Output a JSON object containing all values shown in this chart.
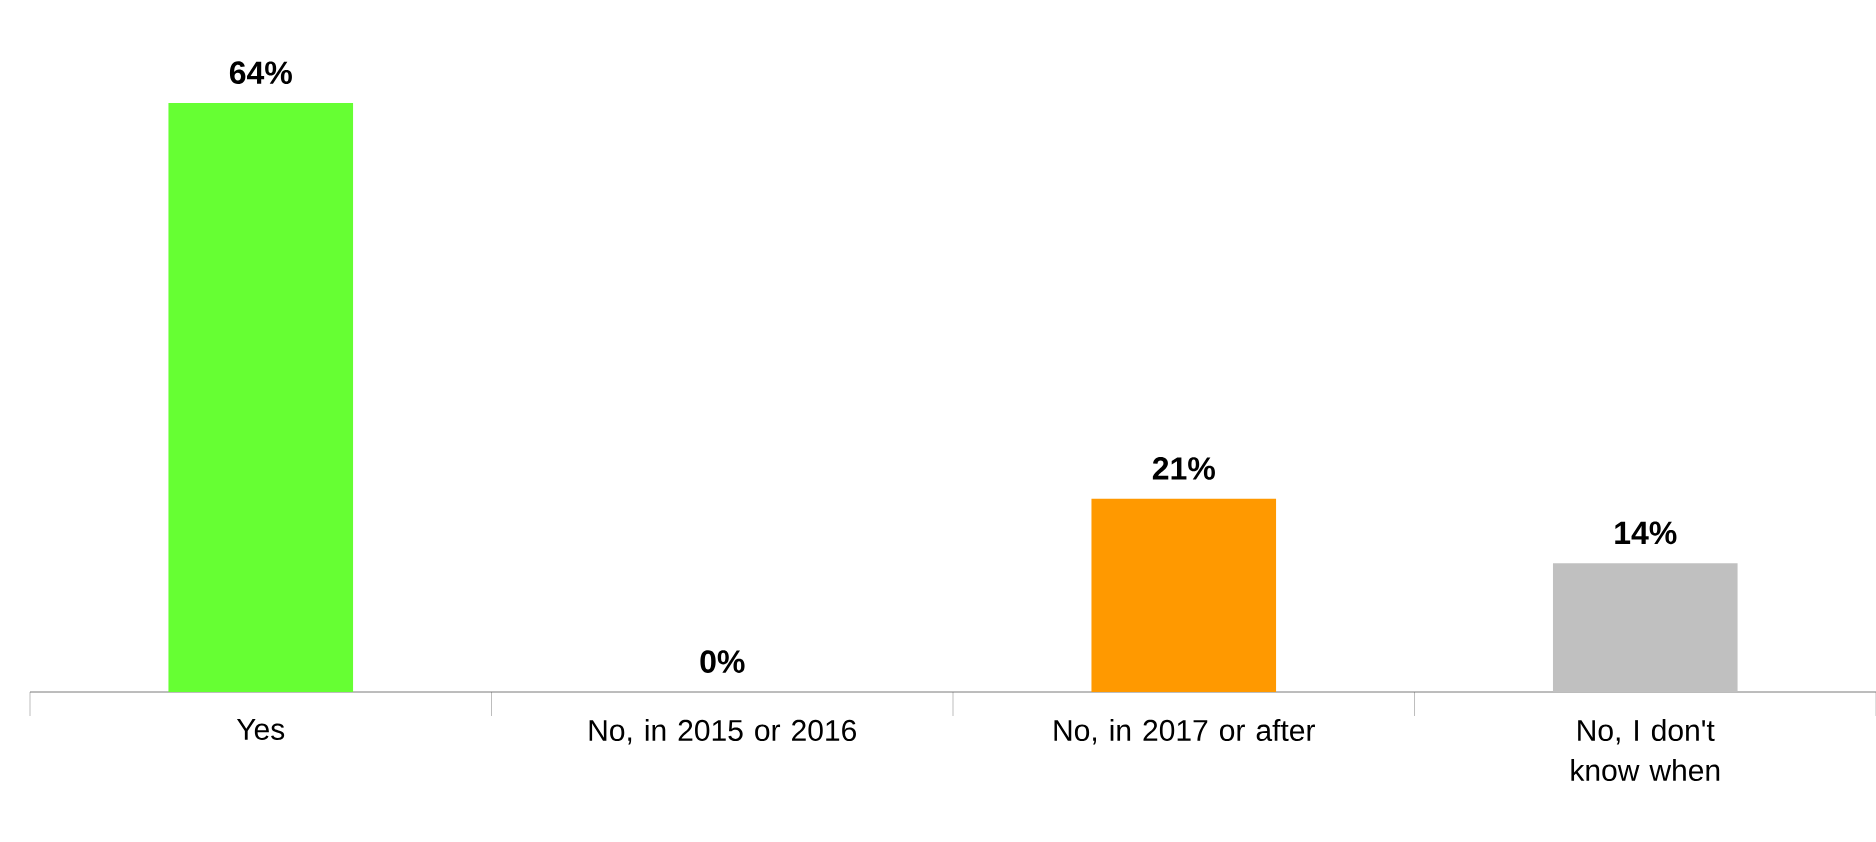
{
  "chart_data": {
    "type": "bar",
    "categories": [
      "Yes",
      "No, in 2015 or 2016",
      "No, in 2017 or after",
      "No, I don't know when"
    ],
    "values": [
      64,
      0,
      21,
      14
    ],
    "colors": [
      "#66ff33",
      "#66ff33",
      "#ff9900",
      "#c0c0c0"
    ],
    "value_labels": [
      "64%",
      "0%",
      "21%",
      "14%"
    ]
  }
}
